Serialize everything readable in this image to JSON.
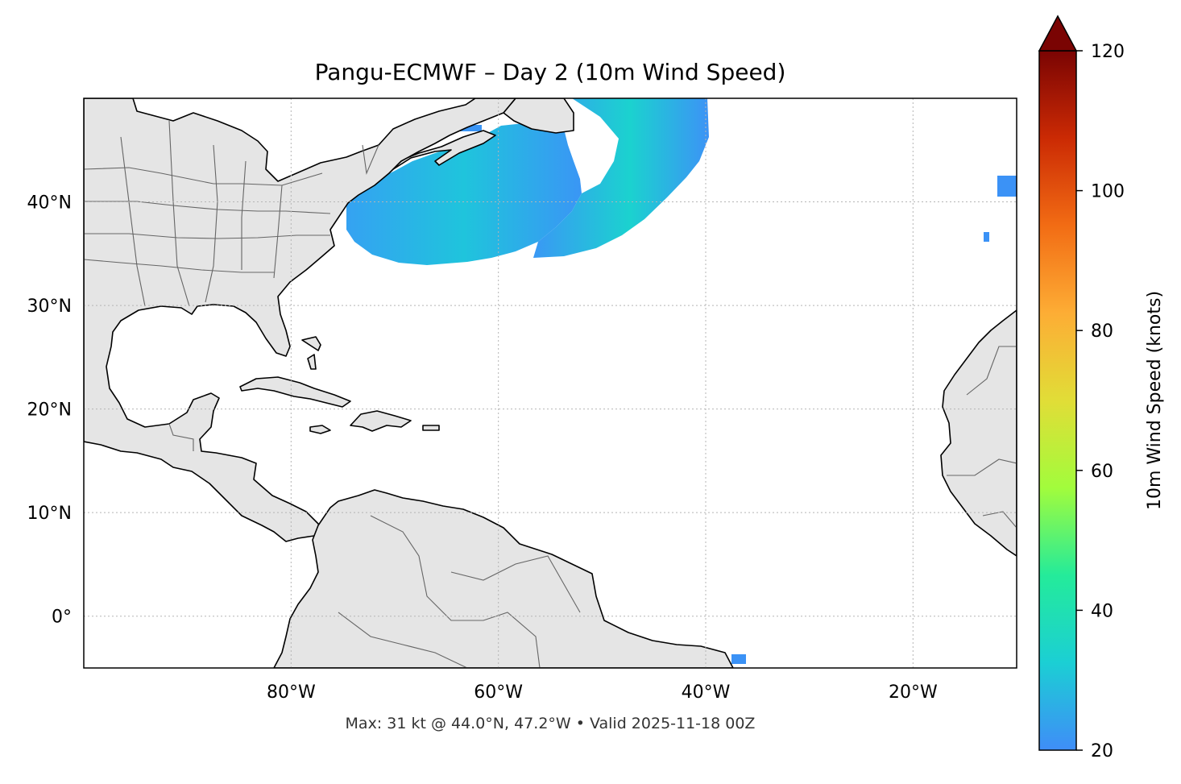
{
  "title": "Pangu-ECMWF – Day 2 (10m Wind Speed)",
  "footer": "Max: 31 kt @ 44.0°N, 47.2°W • Valid 2025-11-18 00Z",
  "map": {
    "lon_range": [
      -100,
      -10
    ],
    "lat_range": [
      -5,
      50
    ],
    "lon_ticks": [
      {
        "value": -80,
        "label": "80°W"
      },
      {
        "value": -60,
        "label": "60°W"
      },
      {
        "value": -40,
        "label": "40°W"
      },
      {
        "value": -20,
        "label": "20°W"
      }
    ],
    "lat_ticks": [
      {
        "value": 40,
        "label": "40°N"
      },
      {
        "value": 30,
        "label": "30°N"
      },
      {
        "value": 20,
        "label": "20°N"
      },
      {
        "value": 10,
        "label": "10°N"
      },
      {
        "value": 0,
        "label": "0°"
      }
    ],
    "gridlines": true,
    "land_color": "#e5e5e5"
  },
  "colorbar": {
    "label": "10m Wind Speed (knots)",
    "range": [
      20,
      120
    ],
    "extend": "max",
    "ticks": [
      {
        "value": 120,
        "label": "120"
      },
      {
        "value": 100,
        "label": "100"
      },
      {
        "value": 80,
        "label": "80"
      },
      {
        "value": 60,
        "label": "60"
      },
      {
        "value": 40,
        "label": "40"
      },
      {
        "value": 20,
        "label": "20"
      }
    ],
    "colors": [
      "#3f8df8",
      "#1bcfd4",
      "#24eb9a",
      "#a2fc3c",
      "#e1dd37",
      "#fdad35",
      "#f26c14",
      "#cb2a04",
      "#7a0403"
    ]
  },
  "wind_max": {
    "speed_kt": 31,
    "lat": 44.0,
    "lon": -47.2
  }
}
